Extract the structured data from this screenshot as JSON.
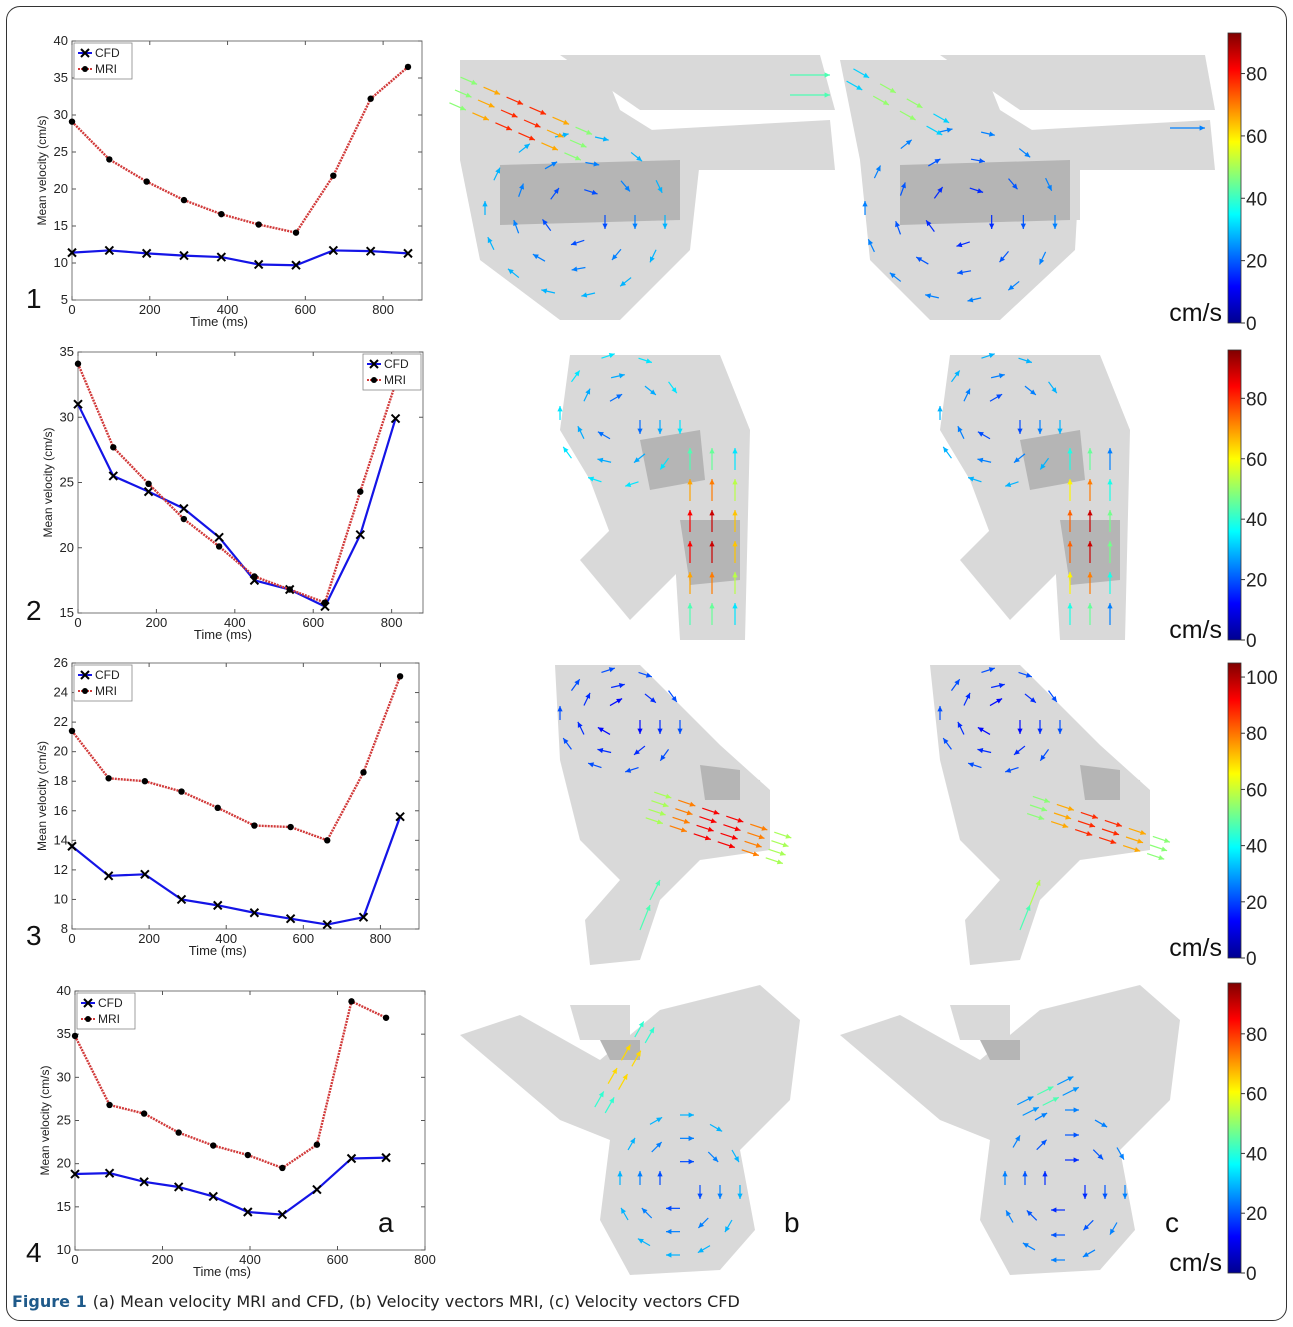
{
  "figure": {
    "caption_label": "Figure 1",
    "caption_text": "(a) Mean velocity MRI and CFD, (b) Velocity vectors MRI, (c) Velocity vectors CFD",
    "column_labels": [
      "a",
      "b",
      "c"
    ],
    "row_labels": [
      "1",
      "2",
      "3",
      "4"
    ],
    "colorbar_unit": "cm/s",
    "colorbars": [
      {
        "ticks": [
          0,
          20,
          40,
          60,
          80
        ],
        "max": 93
      },
      {
        "ticks": [
          0,
          20,
          40,
          60,
          80
        ],
        "max": 96
      },
      {
        "ticks": [
          0,
          20,
          40,
          60,
          80,
          100
        ],
        "max": 105
      },
      {
        "ticks": [
          0,
          20,
          40,
          60,
          80
        ],
        "max": 97
      }
    ]
  },
  "chart_data": [
    {
      "type": "line",
      "panel": "1a",
      "xlabel": "Time (ms)",
      "ylabel": "Mean velocity (cm/s)",
      "xlim": [
        0,
        900
      ],
      "ylim": [
        5,
        40
      ],
      "xticks": [
        0,
        200,
        400,
        600,
        800
      ],
      "yticks": [
        5,
        10,
        15,
        20,
        25,
        30,
        35,
        40
      ],
      "legend_position": "top-left",
      "series": [
        {
          "name": "CFD",
          "x": [
            0,
            96,
            192,
            288,
            384,
            480,
            576,
            672,
            768,
            864
          ],
          "y": [
            11.4,
            11.7,
            11.3,
            11.0,
            10.8,
            9.8,
            9.7,
            11.7,
            11.6,
            11.3
          ]
        },
        {
          "name": "MRI",
          "x": [
            0,
            96,
            192,
            288,
            384,
            480,
            576,
            672,
            768,
            864
          ],
          "y": [
            29.1,
            24.0,
            21.0,
            18.5,
            16.6,
            15.2,
            14.1,
            21.8,
            32.2,
            36.5
          ]
        }
      ]
    },
    {
      "type": "line",
      "panel": "2a",
      "xlabel": "Time (ms)",
      "ylabel": "Mean velocity (cm/s)",
      "xlim": [
        0,
        880
      ],
      "ylim": [
        15,
        35
      ],
      "xticks": [
        0,
        200,
        400,
        600,
        800
      ],
      "yticks": [
        15,
        20,
        25,
        30,
        35
      ],
      "legend_position": "top-right",
      "series": [
        {
          "name": "CFD",
          "x": [
            0,
            90,
            180,
            270,
            360,
            450,
            540,
            630,
            720,
            810
          ],
          "y": [
            31.0,
            25.5,
            24.3,
            23.0,
            20.8,
            17.5,
            16.8,
            15.5,
            21.0,
            29.9
          ]
        },
        {
          "name": "MRI",
          "x": [
            0,
            90,
            180,
            270,
            360,
            450,
            540,
            630,
            720,
            810
          ],
          "y": [
            34.1,
            27.7,
            24.9,
            22.2,
            20.1,
            17.8,
            16.8,
            15.8,
            24.3,
            32.6
          ]
        }
      ]
    },
    {
      "type": "line",
      "panel": "3a",
      "xlabel": "Time (ms)",
      "ylabel": "Mean velocity (cm/s)",
      "xlim": [
        0,
        900
      ],
      "ylim": [
        8,
        26
      ],
      "xticks": [
        0,
        200,
        400,
        600,
        800
      ],
      "yticks": [
        8,
        10,
        12,
        14,
        16,
        18,
        20,
        22,
        24,
        26
      ],
      "legend_position": "top-left",
      "series": [
        {
          "name": "CFD",
          "x": [
            0,
            95,
            189,
            284,
            378,
            473,
            567,
            662,
            756,
            851
          ],
          "y": [
            13.6,
            11.6,
            11.7,
            10.0,
            9.6,
            9.1,
            8.7,
            8.3,
            8.8,
            15.6
          ]
        },
        {
          "name": "MRI",
          "x": [
            0,
            95,
            189,
            284,
            378,
            473,
            567,
            662,
            756,
            851
          ],
          "y": [
            21.4,
            18.2,
            18.0,
            17.3,
            16.2,
            15.0,
            14.9,
            14.0,
            18.6,
            25.1
          ]
        }
      ]
    },
    {
      "type": "line",
      "panel": "4a",
      "xlabel": "Time (ms)",
      "ylabel": "Mean velocity (cm/s)",
      "xlim": [
        0,
        800
      ],
      "ylim": [
        10,
        40
      ],
      "xticks": [
        0,
        200,
        400,
        600,
        800
      ],
      "yticks": [
        10,
        15,
        20,
        25,
        30,
        35,
        40
      ],
      "legend_position": "top-left",
      "series": [
        {
          "name": "CFD",
          "x": [
            0,
            79,
            158,
            237,
            316,
            395,
            474,
            553,
            632,
            711
          ],
          "y": [
            18.8,
            18.9,
            17.9,
            17.3,
            16.2,
            14.4,
            14.1,
            17.0,
            20.6,
            20.7
          ]
        },
        {
          "name": "MRI",
          "x": [
            0,
            79,
            158,
            237,
            316,
            395,
            474,
            553,
            632,
            711
          ],
          "y": [
            34.8,
            26.8,
            25.8,
            23.6,
            22.1,
            21.0,
            19.5,
            22.2,
            38.8,
            36.9
          ]
        }
      ]
    }
  ]
}
